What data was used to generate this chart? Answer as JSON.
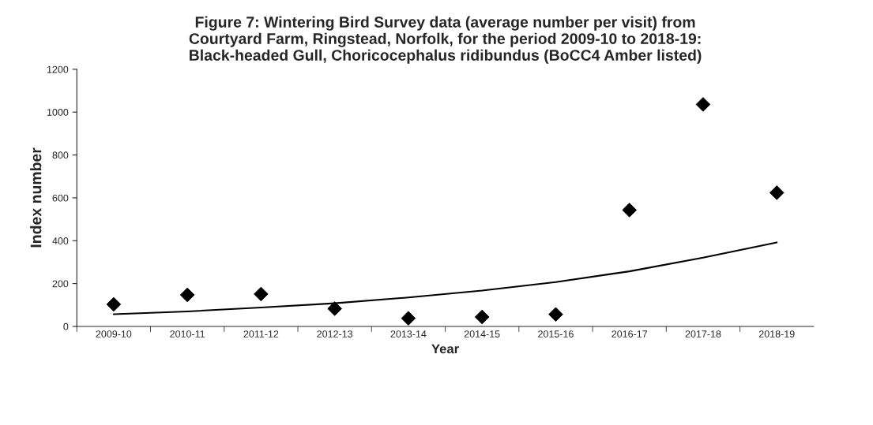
{
  "chart_data": {
    "type": "scatter",
    "title": "Figure 7: Wintering Bird Survey data (average number per visit) from\nCourtyard Farm, Ringstead, Norfolk, for the period 2009-10 to 2018-19:\nBlack-headed Gull, Choricocephalus ridibundus (BoCC4 Amber listed)",
    "xlabel": "Year",
    "ylabel": "Index number",
    "categories": [
      "2009-10",
      "2010-11",
      "2011-12",
      "2012-13",
      "2013-14",
      "2014-15",
      "2015-16",
      "2016-17",
      "2017-18",
      "2018-19"
    ],
    "series": [
      {
        "color": "#000000",
        "marker": "diamond",
        "values": [
          103,
          147,
          151,
          83,
          38,
          44,
          56,
          543,
          1036,
          624
        ]
      },
      {
        "type": "line",
        "color": "#000000",
        "marker": "none",
        "line_style": "solid",
        "values": [
          57,
          70,
          88,
          108,
          135,
          167,
          207,
          257,
          321,
          392
        ]
      }
    ],
    "ylim": [
      0,
      1200
    ],
    "yticks": [
      0,
      200,
      400,
      600,
      800,
      1000,
      1200
    ],
    "grid": false,
    "legend": false
  }
}
